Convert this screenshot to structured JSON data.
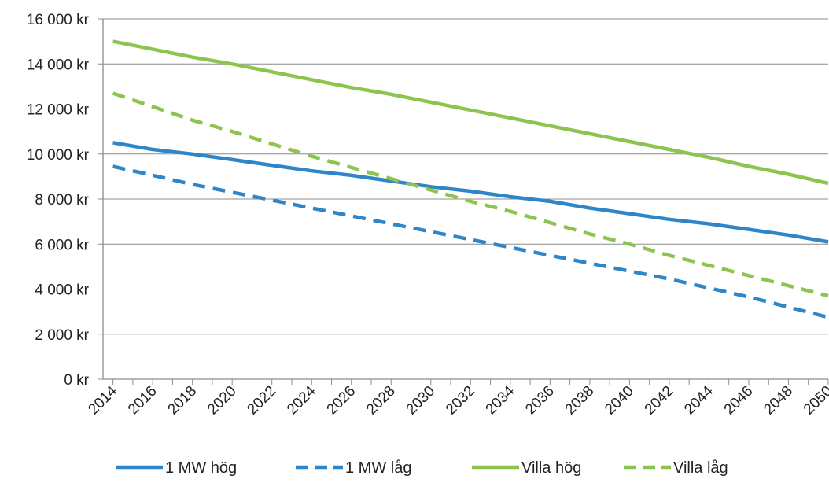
{
  "chart_data": {
    "type": "line",
    "x": [
      2014,
      2016,
      2018,
      2020,
      2022,
      2024,
      2026,
      2028,
      2030,
      2032,
      2034,
      2036,
      2038,
      2040,
      2042,
      2044,
      2046,
      2048,
      2050
    ],
    "x_tick_labels": [
      "2014",
      "2016",
      "2018",
      "2020",
      "2022",
      "2024",
      "2026",
      "2028",
      "2030",
      "2032",
      "2034",
      "2036",
      "2038",
      "2040",
      "2042",
      "2044",
      "2046",
      "2048",
      "2050"
    ],
    "ylim": [
      0,
      16000
    ],
    "y_ticks": [
      0,
      2000,
      4000,
      6000,
      8000,
      10000,
      12000,
      14000,
      16000
    ],
    "y_tick_labels": [
      "0 kr",
      "2 000 kr",
      "4 000 kr",
      "6 000 kr",
      "8 000 kr",
      "10 000 kr",
      "12 000 kr",
      "14 000 kr",
      "16 000 kr"
    ],
    "grid": "horizontal",
    "legend_position": "bottom",
    "series": [
      {
        "name": "1 MW hög",
        "color": "#2E86C8",
        "style": "solid",
        "values": [
          10500,
          10200,
          10000,
          9750,
          9500,
          9250,
          9050,
          8800,
          8550,
          8350,
          8100,
          7900,
          7600,
          7350,
          7100,
          6900,
          6650,
          6400,
          6100
        ]
      },
      {
        "name": "1 MW låg",
        "color": "#2E86C8",
        "style": "dashed",
        "values": [
          9450,
          9050,
          8650,
          8300,
          7950,
          7600,
          7250,
          6900,
          6550,
          6200,
          5850,
          5500,
          5150,
          4800,
          4450,
          4050,
          3650,
          3200,
          2750
        ]
      },
      {
        "name": "Villa hög",
        "color": "#8DC44F",
        "style": "solid",
        "values": [
          15000,
          14650,
          14300,
          14000,
          13650,
          13300,
          12950,
          12650,
          12300,
          11950,
          11600,
          11250,
          10900,
          10550,
          10200,
          9850,
          9450,
          9100,
          8700
        ]
      },
      {
        "name": "Villa låg",
        "color": "#8DC44F",
        "style": "dashed",
        "values": [
          12700,
          12100,
          11500,
          11000,
          10450,
          9900,
          9400,
          8900,
          8400,
          7900,
          7450,
          6950,
          6450,
          6000,
          5500,
          5050,
          4600,
          4150,
          3700
        ]
      }
    ]
  }
}
